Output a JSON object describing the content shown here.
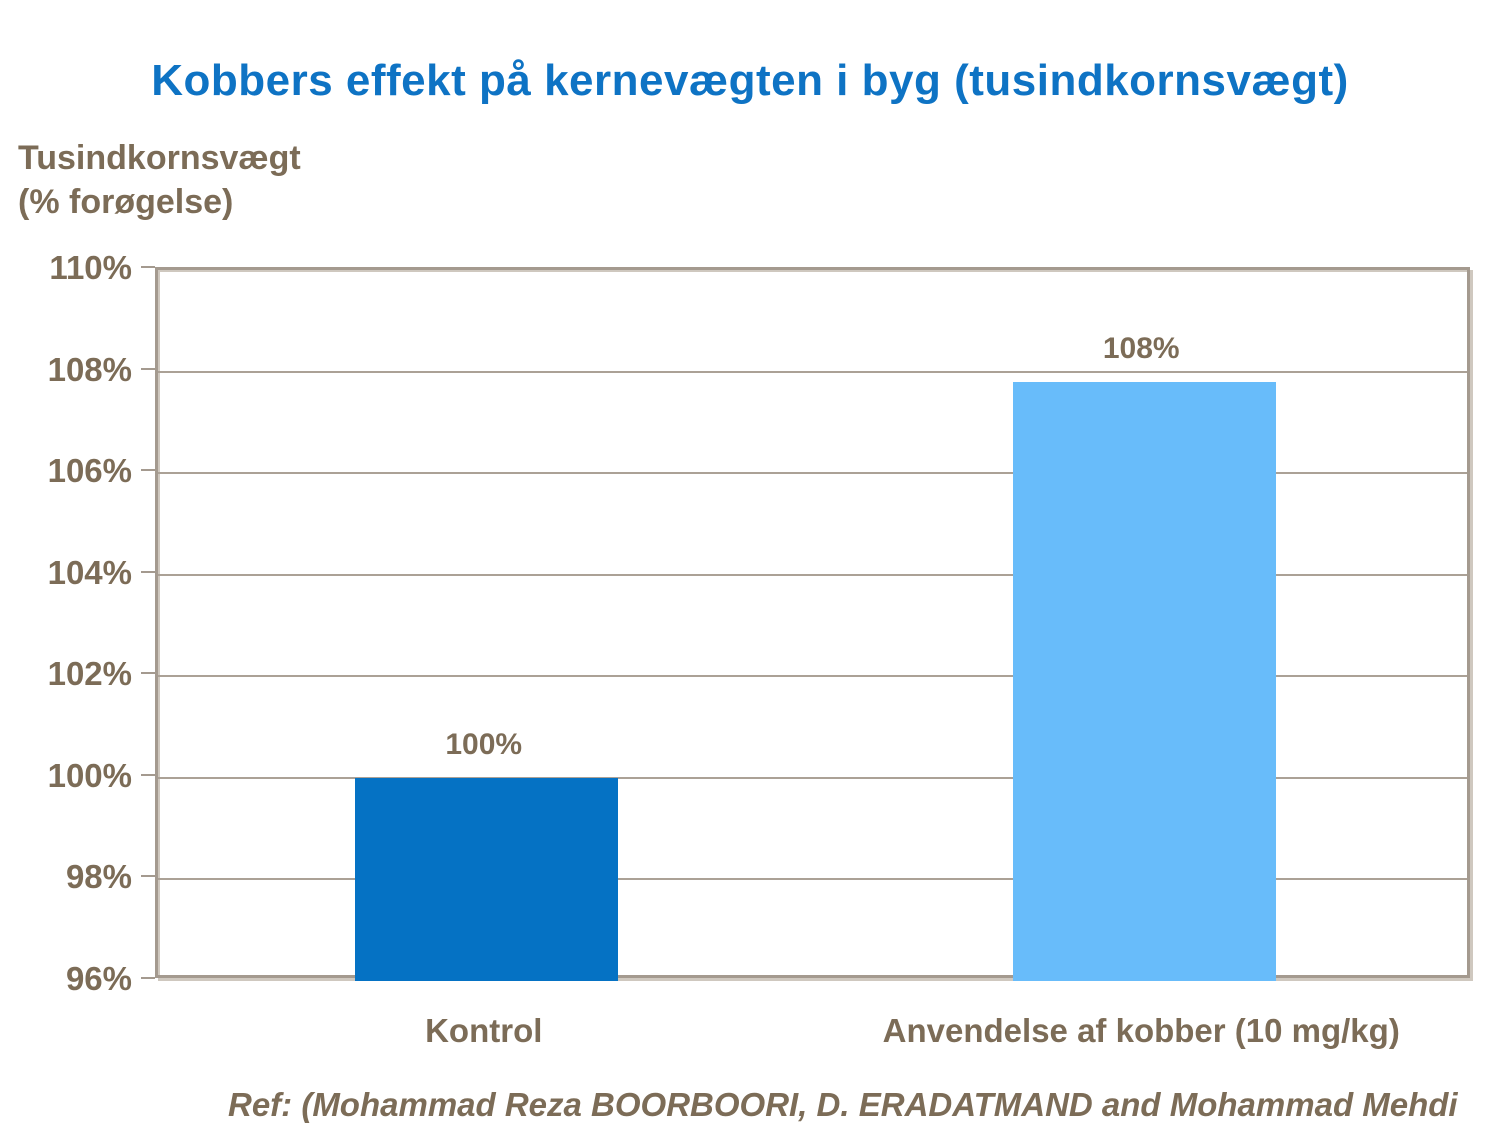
{
  "page": {
    "background": "#FFFFFF",
    "ref_text": "Ref: (Mohammad Reza BOORBOORI, D. ERADATMAND and Mohammad Mehdi"
  },
  "colors": {
    "title_blue": "#0E73C4",
    "axis_text_brown": "#7C6C57",
    "gridline": "#ABA196",
    "plot_border": "#A49A8F",
    "plot_border_light": "#CFC8BF",
    "bar_control": "#0572C4",
    "bar_copper": "#68BCFA"
  },
  "chart_data": {
    "type": "bar",
    "title": "Kobbers effekt på kernevægten i byg (tusindkornsvægt)",
    "ylabel_lines": [
      "Tusindkornsvægt",
      "(% forøgelse)"
    ],
    "categories": [
      "Kontrol",
      "Anvendelse af kobber (10 mg/kg)"
    ],
    "values": [
      100,
      107.8
    ],
    "value_labels": [
      "100%",
      "108%"
    ],
    "bar_colors": [
      "#0572C4",
      "#68BCFA"
    ],
    "ylim": [
      96,
      110
    ],
    "ytick_step": 2,
    "ytick_suffix": "%",
    "grid": true,
    "legend_position": "none"
  }
}
